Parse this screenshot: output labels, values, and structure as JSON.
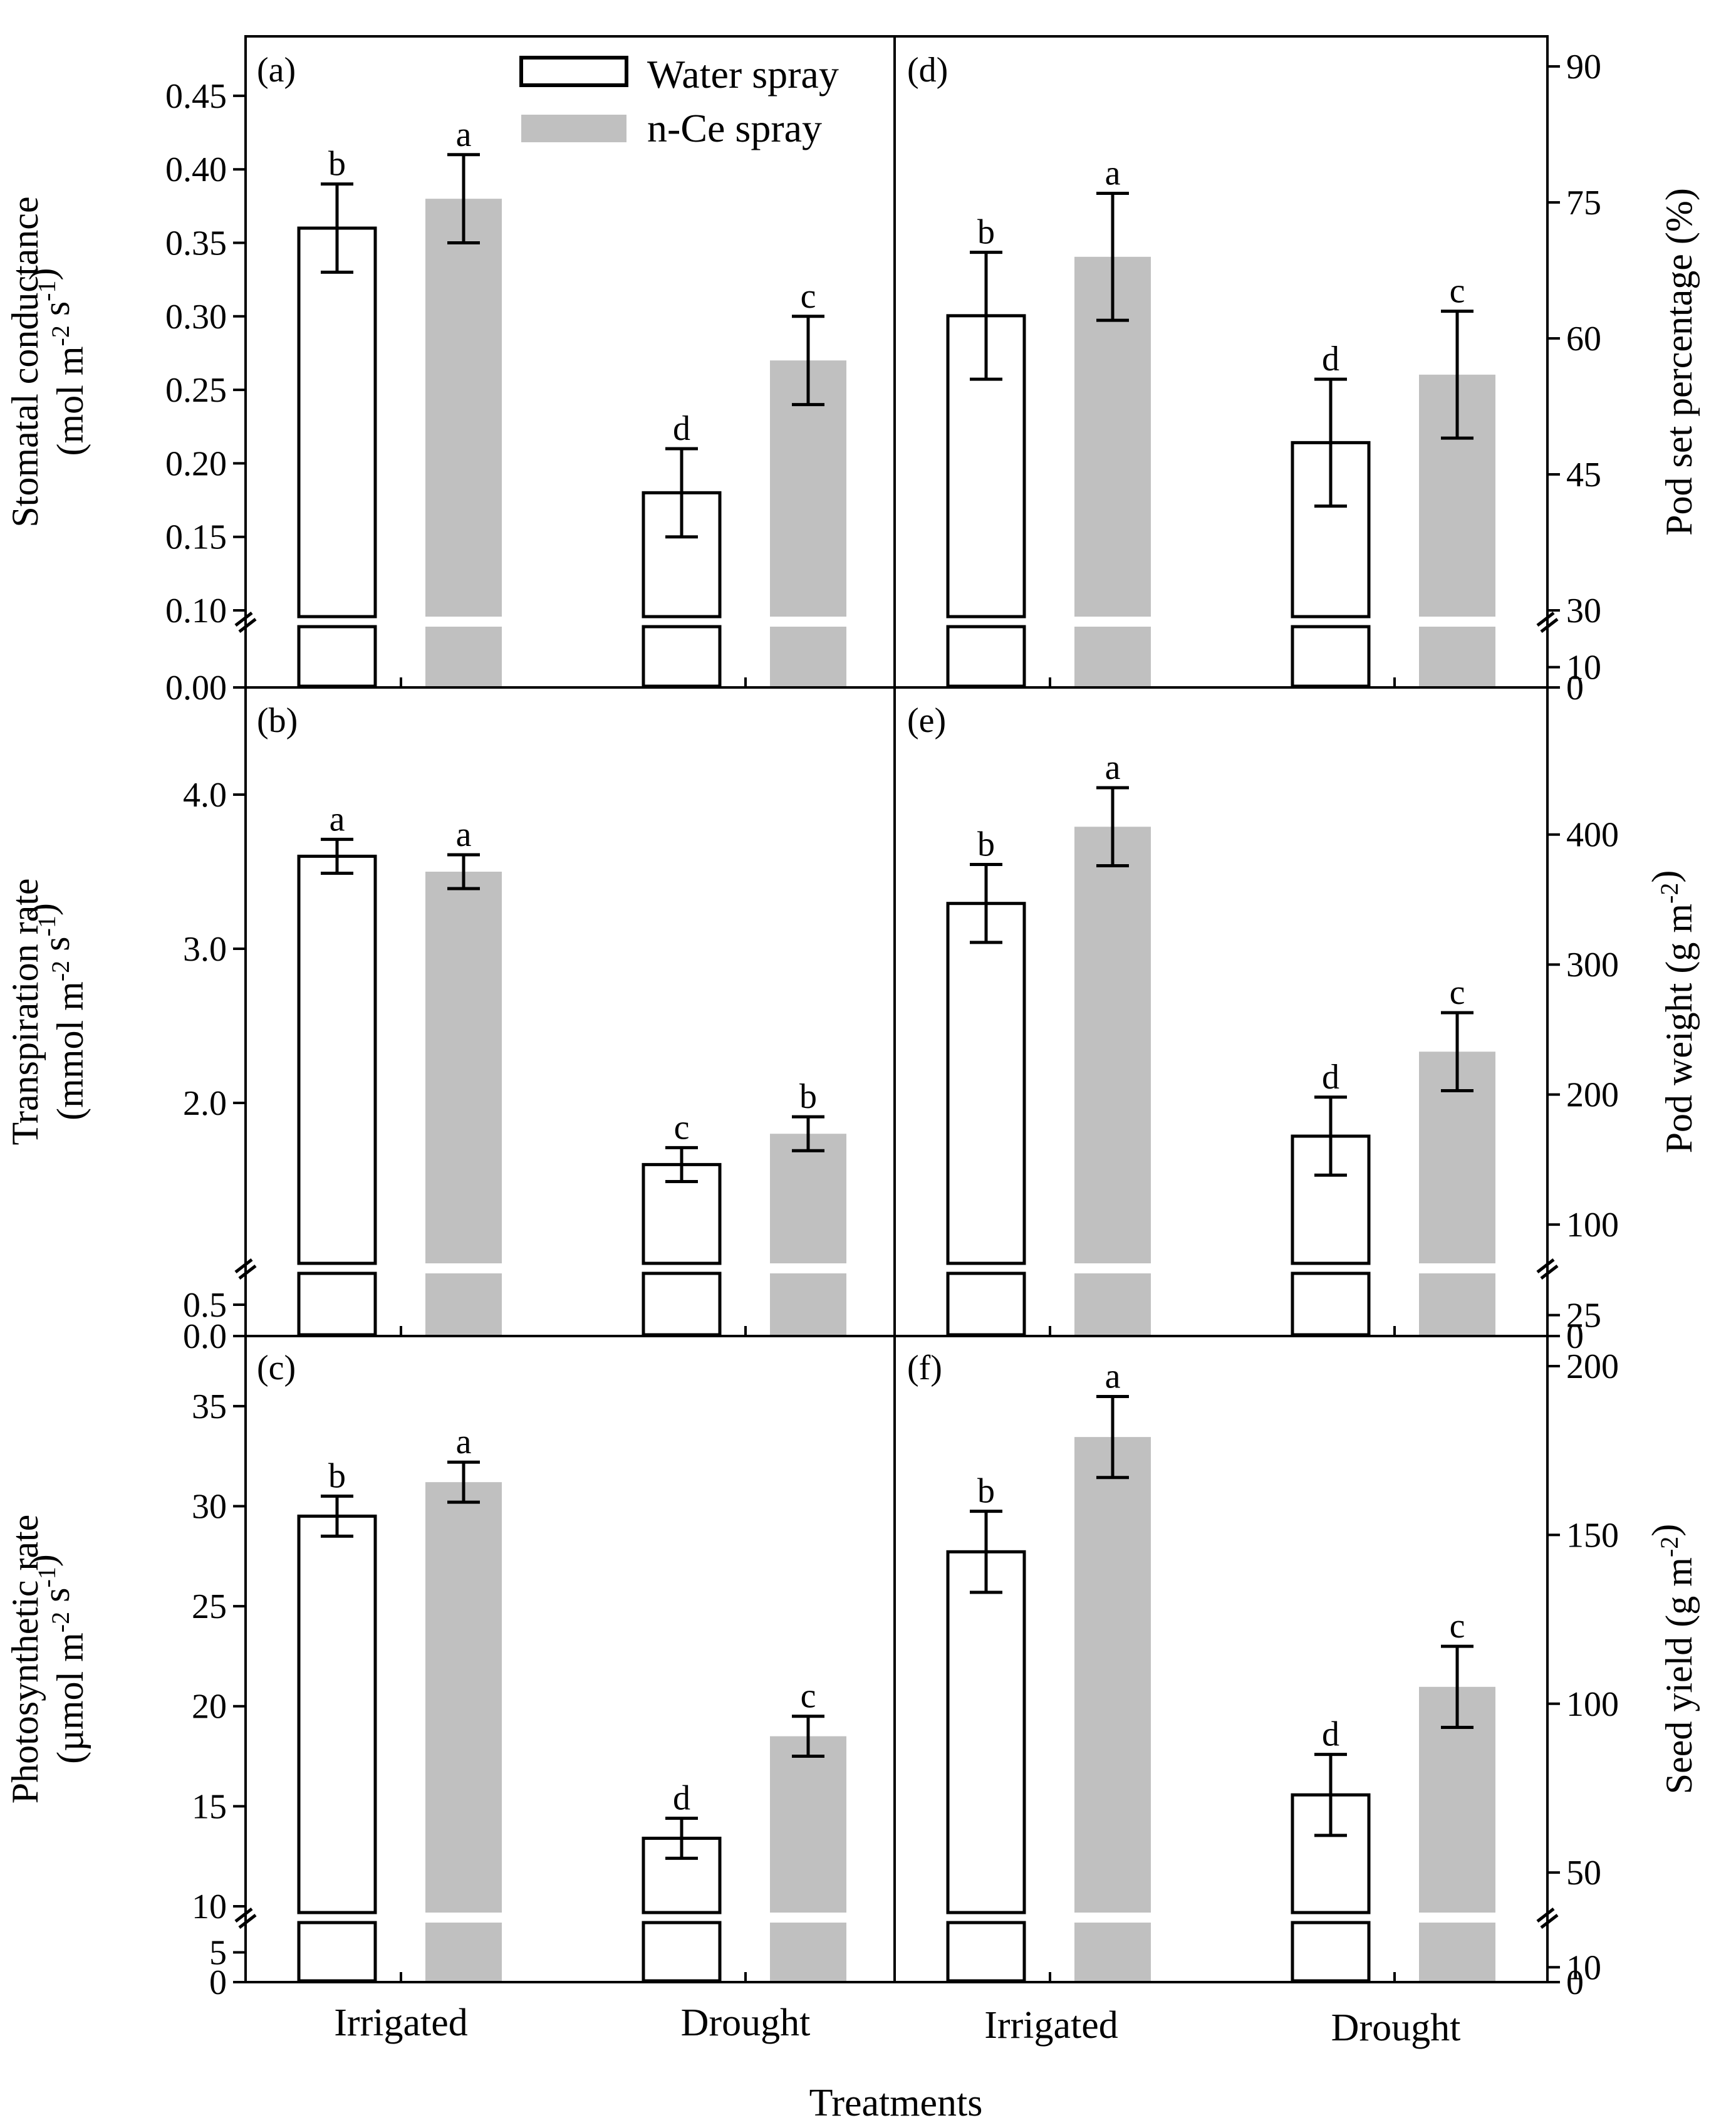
{
  "figure": {
    "x_axis_title": "Treatments",
    "colors": {
      "water_fill": "#ffffff",
      "nce_fill": "#c0c0c0",
      "stroke": "#000000"
    }
  },
  "legend": {
    "items": [
      {
        "label": "Water spray",
        "fill": "#ffffff"
      },
      {
        "label": "n-Ce spray",
        "fill": "#c0c0c0"
      }
    ]
  },
  "chart_data": [
    {
      "panel": "(a)",
      "type": "bar",
      "axis_side": "left",
      "ylabel": [
        "Stomatal conductance",
        "(mol m-2 s-1)"
      ],
      "categories": [
        "Irrigated",
        "Drought"
      ],
      "axis_break": [
        0.0,
        0.1
      ],
      "ylim": [
        0.1,
        0.47
      ],
      "yticks": [
        "0.45",
        "0.40",
        "0.35",
        "0.30",
        "0.25",
        "0.20",
        "0.15",
        "0.10",
        "0.00"
      ],
      "series": [
        {
          "name": "Water spray",
          "values": [
            0.36,
            0.18
          ],
          "errors": [
            0.03,
            0.03
          ],
          "letters": [
            "b",
            "d"
          ]
        },
        {
          "name": "n-Ce spray",
          "values": [
            0.38,
            0.27
          ],
          "errors": [
            0.03,
            0.03
          ],
          "letters": [
            "a",
            "c"
          ]
        }
      ]
    },
    {
      "panel": "(b)",
      "type": "bar",
      "axis_side": "left",
      "ylabel": [
        "Transpiration rate",
        "(mmol m-2 s-1)"
      ],
      "categories": [
        "Irrigated",
        "Drought"
      ],
      "axis_break": [
        0.5,
        1.0
      ],
      "ylim": [
        1.0,
        4.5
      ],
      "yticks": [
        "4.0",
        "3.0",
        "2.0",
        "0.5",
        "0.0"
      ],
      "series": [
        {
          "name": "Water spray",
          "values": [
            3.6,
            1.6
          ],
          "errors": [
            0.11,
            0.11
          ],
          "letters": [
            "a",
            "c"
          ]
        },
        {
          "name": "n-Ce spray",
          "values": [
            3.5,
            1.8
          ],
          "errors": [
            0.11,
            0.11
          ],
          "letters": [
            "a",
            "b"
          ]
        }
      ]
    },
    {
      "panel": "(c)",
      "type": "bar",
      "axis_side": "left",
      "ylabel": [
        "Photosynthetic rate",
        "(µmol m-2 s-1)"
      ],
      "categories": [
        "Irrigated",
        "Drought"
      ],
      "axis_break": [
        5,
        10
      ],
      "ylim": [
        10,
        37
      ],
      "yticks": [
        "35",
        "30",
        "25",
        "20",
        "15",
        "10",
        "5",
        "0"
      ],
      "series": [
        {
          "name": "Water spray",
          "values": [
            29.5,
            13.4
          ],
          "errors": [
            1.0,
            1.0
          ],
          "letters": [
            "b",
            "d"
          ]
        },
        {
          "name": "n-Ce spray",
          "values": [
            31.2,
            18.5
          ],
          "errors": [
            1.0,
            1.0
          ],
          "letters": [
            "a",
            "c"
          ]
        }
      ]
    },
    {
      "panel": "(d)",
      "type": "bar",
      "axis_side": "right",
      "ylabel": [
        "Pod set percentage (%)"
      ],
      "categories": [
        "Irrigated",
        "Drought"
      ],
      "axis_break": [
        10,
        30
      ],
      "ylim": [
        30,
        90
      ],
      "yticks": [
        "90",
        "75",
        "60",
        "45",
        "30",
        "10",
        "0"
      ],
      "series": [
        {
          "name": "Water spray",
          "values": [
            62.5,
            48.5
          ],
          "errors": [
            7.0,
            7.0
          ],
          "letters": [
            "b",
            "d"
          ]
        },
        {
          "name": "n-Ce spray",
          "values": [
            69.0,
            56.0
          ],
          "errors": [
            7.0,
            7.0
          ],
          "letters": [
            "a",
            "c"
          ]
        }
      ]
    },
    {
      "panel": "(e)",
      "type": "bar",
      "axis_side": "right",
      "ylabel": [
        "Pod weight (g m-2)"
      ],
      "categories": [
        "Irrigated",
        "Drought"
      ],
      "axis_break": [
        25,
        75
      ],
      "ylim": [
        75,
        490
      ],
      "yticks": [
        "400",
        "300",
        "200",
        "100",
        "25",
        "0"
      ],
      "series": [
        {
          "name": "Water spray",
          "values": [
            347,
            168
          ],
          "errors": [
            30,
            30
          ],
          "letters": [
            "b",
            "d"
          ]
        },
        {
          "name": "n-Ce spray",
          "values": [
            406,
            233
          ],
          "errors": [
            30,
            30
          ],
          "letters": [
            "a",
            "c"
          ]
        }
      ]
    },
    {
      "panel": "(f)",
      "type": "bar",
      "axis_side": "right",
      "ylabel": [
        "Seed yield (g m-2)"
      ],
      "categories": [
        "Irrigated",
        "Drought"
      ],
      "axis_break": [
        10,
        40
      ],
      "ylim": [
        40,
        200
      ],
      "yticks": [
        "200",
        "150",
        "100",
        "50",
        "10",
        "0"
      ],
      "series": [
        {
          "name": "Water spray",
          "values": [
            145,
            73
          ],
          "errors": [
            12,
            12
          ],
          "letters": [
            "b",
            "d"
          ]
        },
        {
          "name": "n-Ce spray",
          "values": [
            179,
            105
          ],
          "errors": [
            12,
            12
          ],
          "letters": [
            "a",
            "c"
          ]
        }
      ]
    }
  ]
}
